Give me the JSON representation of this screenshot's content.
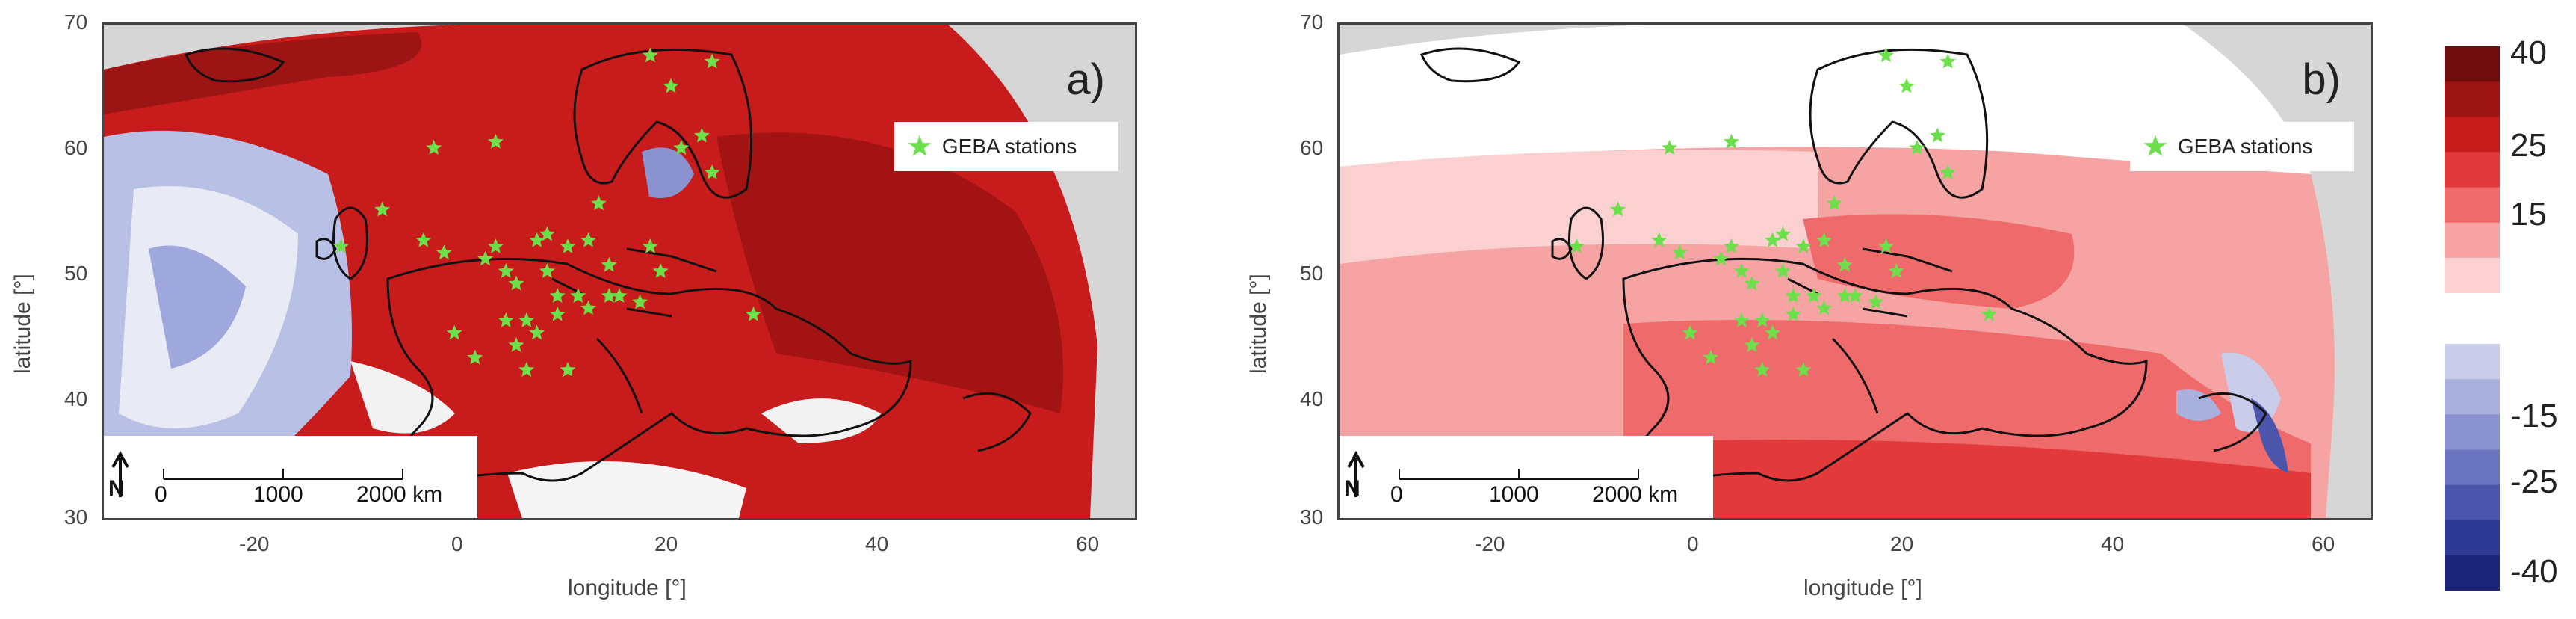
{
  "panels": [
    {
      "id": "a",
      "letter": "a)",
      "legend_label": "GEBA stations",
      "xlabel": "longitude [°]",
      "ylabel": "latitude [°]",
      "x_ticks": [
        "-20",
        "0",
        "20",
        "40",
        "60"
      ],
      "y_ticks": [
        "70",
        "60",
        "50",
        "40",
        "30"
      ],
      "scalebar": {
        "north": "N",
        "labels": [
          "0",
          "1000",
          "2000 km"
        ]
      }
    },
    {
      "id": "b",
      "letter": "b)",
      "legend_label": "GEBA stations",
      "xlabel": "longitude [°]",
      "ylabel": "latitude [°]",
      "x_ticks": [
        "-20",
        "0",
        "20",
        "40",
        "60"
      ],
      "y_ticks": [
        "70",
        "60",
        "50",
        "40",
        "30"
      ],
      "scalebar": {
        "north": "N",
        "labels": [
          "0",
          "1000",
          "2000 km"
        ]
      }
    }
  ],
  "colorbar": {
    "labels": [
      "40",
      "25",
      "15",
      "-15",
      "-25",
      "-40"
    ],
    "colors_positive": [
      "#6e0b0b",
      "#9d1414",
      "#c81b1b",
      "#e23a3a",
      "#ef6b6b",
      "#f5a3a3",
      "#fbd0d0"
    ],
    "colors_negative": [
      "#c9cdea",
      "#a9b0dd",
      "#8a93cf",
      "#6b75bf",
      "#4a55ab",
      "#2e3a94",
      "#1b2477"
    ]
  },
  "colors": {
    "no_data": "#d6d6d6",
    "station_marker": "#6be04a",
    "coastline": "#111111"
  },
  "stations": [
    [
      20,
      67.5
    ],
    [
      26,
      67
    ],
    [
      22,
      65
    ],
    [
      25,
      61
    ],
    [
      23,
      60
    ],
    [
      26,
      58
    ],
    [
      5,
      60.5
    ],
    [
      -1,
      60
    ],
    [
      15,
      55.5
    ],
    [
      -6,
      55
    ],
    [
      -2,
      52.5
    ],
    [
      -10,
      52
    ],
    [
      0,
      51.5
    ],
    [
      4,
      51
    ],
    [
      5,
      52
    ],
    [
      6,
      50
    ],
    [
      7,
      49
    ],
    [
      9,
      52.5
    ],
    [
      10,
      53
    ],
    [
      12,
      52
    ],
    [
      14,
      52.5
    ],
    [
      10,
      50
    ],
    [
      11,
      48
    ],
    [
      13,
      48
    ],
    [
      14,
      47
    ],
    [
      16,
      48
    ],
    [
      17,
      48
    ],
    [
      19,
      47.5
    ],
    [
      20,
      52
    ],
    [
      21,
      50
    ],
    [
      8,
      46
    ],
    [
      6,
      46
    ],
    [
      11,
      46.5
    ],
    [
      7,
      44
    ],
    [
      1,
      45
    ],
    [
      9,
      45
    ],
    [
      12,
      42
    ],
    [
      3,
      43
    ],
    [
      8,
      42
    ],
    [
      30,
      46.5
    ],
    [
      16,
      50.5
    ]
  ]
}
